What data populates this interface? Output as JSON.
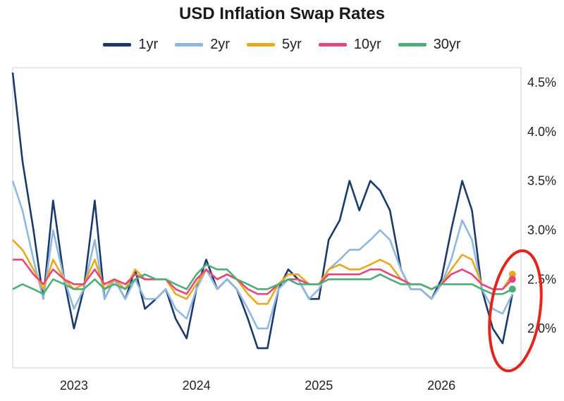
{
  "chart_data": {
    "type": "line",
    "title": "USD Inflation Swap Rates",
    "xlabel": "",
    "ylabel": "",
    "x_ticks": [
      "2023",
      "2024",
      "2025",
      "2026"
    ],
    "y_ticks": [
      "2.0%",
      "2.5%",
      "3.0%",
      "3.5%",
      "4.0%",
      "4.5%"
    ],
    "ylim": [
      1.6,
      4.65
    ],
    "grid": false,
    "legend_position": "top",
    "x": [
      2022.5,
      2022.58,
      2022.67,
      2022.75,
      2022.83,
      2022.92,
      2023.0,
      2023.08,
      2023.17,
      2023.25,
      2023.33,
      2023.42,
      2023.5,
      2023.58,
      2023.67,
      2023.75,
      2023.83,
      2023.92,
      2024.0,
      2024.08,
      2024.17,
      2024.25,
      2024.33,
      2024.42,
      2024.5,
      2024.58,
      2024.67,
      2024.75,
      2024.83,
      2024.92,
      2025.0,
      2025.08,
      2025.17,
      2025.25,
      2025.33,
      2025.42,
      2025.5,
      2025.58,
      2025.67,
      2025.75,
      2025.83,
      2025.92,
      2026.0,
      2026.08,
      2026.17,
      2026.25,
      2026.33,
      2026.42,
      2026.5,
      2026.58
    ],
    "series": [
      {
        "name": "1yr",
        "color": "#1b3a6b",
        "values": [
          4.6,
          3.7,
          3.0,
          2.3,
          3.3,
          2.5,
          2.0,
          2.4,
          3.3,
          2.3,
          2.5,
          2.3,
          2.6,
          2.2,
          2.3,
          2.4,
          2.1,
          1.9,
          2.4,
          2.7,
          2.4,
          2.5,
          2.4,
          2.1,
          1.8,
          1.8,
          2.4,
          2.6,
          2.5,
          2.3,
          2.3,
          2.9,
          3.1,
          3.5,
          3.2,
          3.5,
          3.4,
          3.2,
          2.6,
          2.4,
          2.4,
          2.3,
          2.5,
          3.0,
          3.5,
          3.2,
          2.4,
          2.0,
          1.85,
          2.35
        ]
      },
      {
        "name": "2yr",
        "color": "#8fb8e0",
        "values": [
          3.5,
          3.2,
          2.7,
          2.3,
          3.0,
          2.5,
          2.2,
          2.4,
          2.9,
          2.3,
          2.5,
          2.3,
          2.5,
          2.3,
          2.3,
          2.4,
          2.2,
          2.1,
          2.4,
          2.6,
          2.4,
          2.5,
          2.4,
          2.2,
          2.0,
          2.0,
          2.4,
          2.5,
          2.5,
          2.3,
          2.4,
          2.6,
          2.7,
          2.8,
          2.8,
          2.9,
          3.0,
          2.9,
          2.6,
          2.4,
          2.4,
          2.3,
          2.45,
          2.7,
          3.1,
          2.9,
          2.4,
          2.2,
          2.15,
          2.35
        ]
      },
      {
        "name": "5yr",
        "color": "#e8a91e",
        "values": [
          2.9,
          2.8,
          2.6,
          2.4,
          2.7,
          2.5,
          2.4,
          2.45,
          2.7,
          2.4,
          2.5,
          2.4,
          2.6,
          2.5,
          2.5,
          2.5,
          2.35,
          2.3,
          2.45,
          2.6,
          2.5,
          2.55,
          2.5,
          2.35,
          2.25,
          2.25,
          2.45,
          2.55,
          2.55,
          2.45,
          2.45,
          2.6,
          2.65,
          2.6,
          2.6,
          2.65,
          2.7,
          2.65,
          2.5,
          2.45,
          2.45,
          2.4,
          2.45,
          2.6,
          2.75,
          2.7,
          2.45,
          2.4,
          2.4,
          2.55
        ]
      },
      {
        "name": "10yr",
        "color": "#e4477c",
        "values": [
          2.7,
          2.7,
          2.55,
          2.45,
          2.6,
          2.5,
          2.45,
          2.45,
          2.6,
          2.45,
          2.5,
          2.45,
          2.55,
          2.5,
          2.5,
          2.5,
          2.4,
          2.35,
          2.5,
          2.6,
          2.5,
          2.55,
          2.5,
          2.4,
          2.35,
          2.35,
          2.45,
          2.5,
          2.5,
          2.45,
          2.45,
          2.55,
          2.55,
          2.55,
          2.55,
          2.6,
          2.6,
          2.55,
          2.5,
          2.45,
          2.45,
          2.4,
          2.45,
          2.55,
          2.6,
          2.55,
          2.45,
          2.4,
          2.4,
          2.5
        ]
      },
      {
        "name": "30yr",
        "color": "#4caf78",
        "values": [
          2.4,
          2.45,
          2.4,
          2.35,
          2.5,
          2.45,
          2.4,
          2.4,
          2.5,
          2.4,
          2.45,
          2.4,
          2.5,
          2.55,
          2.5,
          2.5,
          2.45,
          2.4,
          2.55,
          2.65,
          2.6,
          2.6,
          2.5,
          2.45,
          2.4,
          2.4,
          2.45,
          2.5,
          2.45,
          2.45,
          2.45,
          2.5,
          2.5,
          2.5,
          2.5,
          2.5,
          2.55,
          2.5,
          2.45,
          2.45,
          2.45,
          2.4,
          2.45,
          2.45,
          2.45,
          2.45,
          2.4,
          2.35,
          2.35,
          2.4
        ]
      }
    ]
  }
}
